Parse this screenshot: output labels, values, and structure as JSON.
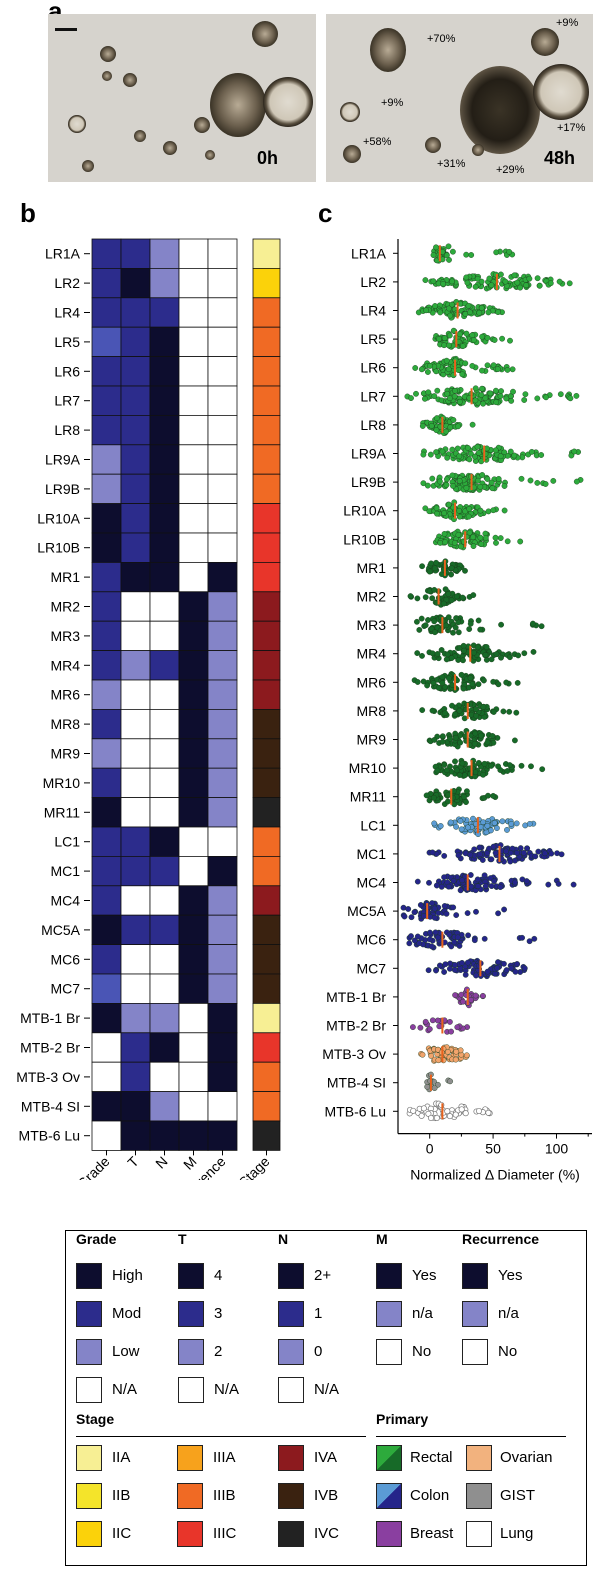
{
  "panel_labels": {
    "a": "a",
    "b": "b",
    "c": "c"
  },
  "micrographs": [
    {
      "time_label": "0h",
      "growth_labels": []
    },
    {
      "time_label": "48h",
      "growth_labels": [
        "+70%",
        "+9%",
        "+9%",
        "+58%",
        "+17%",
        "+31%",
        "+29%"
      ]
    }
  ],
  "heatmap": {
    "samples": [
      "LR1A",
      "LR2",
      "LR4",
      "LR5",
      "LR6",
      "LR7",
      "LR8",
      "LR9A",
      "LR9B",
      "LR10A",
      "LR10B",
      "MR1",
      "MR2",
      "MR3",
      "MR4",
      "MR6",
      "MR8",
      "MR9",
      "MR10",
      "MR11",
      "LC1",
      "MC1",
      "MC4",
      "MC5A",
      "MC6",
      "MC7",
      "MTB-1 Br",
      "MTB-2 Br",
      "MTB-3 Ov",
      "MTB-4 SI",
      "MTB-6 Lu"
    ],
    "columns": [
      "Grade",
      "T",
      "N",
      "M",
      "Recurrence"
    ],
    "stage_label": "Stage",
    "colors": {
      "high": "#0d0d2e",
      "mod": "#2c2c8c",
      "mod2": "#4a55b5",
      "low": "#8484c8",
      "white": "#ffffff"
    },
    "cells": [
      [
        "mod",
        "mod",
        "low",
        "white",
        "white"
      ],
      [
        "mod",
        "high",
        "low",
        "white",
        "white"
      ],
      [
        "mod",
        "mod",
        "mod",
        "white",
        "white"
      ],
      [
        "mod2",
        "mod",
        "high",
        "white",
        "white"
      ],
      [
        "mod",
        "mod",
        "high",
        "white",
        "white"
      ],
      [
        "mod",
        "mod",
        "high",
        "white",
        "white"
      ],
      [
        "mod",
        "mod",
        "high",
        "white",
        "white"
      ],
      [
        "low",
        "mod",
        "high",
        "white",
        "white"
      ],
      [
        "low",
        "mod",
        "high",
        "white",
        "white"
      ],
      [
        "high",
        "mod",
        "high",
        "white",
        "white"
      ],
      [
        "high",
        "mod",
        "high",
        "white",
        "white"
      ],
      [
        "mod",
        "high",
        "high",
        "white",
        "high"
      ],
      [
        "mod",
        "white",
        "white",
        "high",
        "low"
      ],
      [
        "mod",
        "white",
        "white",
        "high",
        "low"
      ],
      [
        "mod",
        "low",
        "mod",
        "high",
        "low"
      ],
      [
        "low",
        "white",
        "white",
        "high",
        "low"
      ],
      [
        "mod",
        "white",
        "white",
        "high",
        "low"
      ],
      [
        "low",
        "white",
        "white",
        "high",
        "low"
      ],
      [
        "mod",
        "white",
        "white",
        "high",
        "low"
      ],
      [
        "high",
        "white",
        "white",
        "high",
        "low"
      ],
      [
        "mod",
        "mod",
        "high",
        "white",
        "white"
      ],
      [
        "mod",
        "mod",
        "mod",
        "white",
        "high"
      ],
      [
        "mod",
        "white",
        "white",
        "high",
        "low"
      ],
      [
        "high",
        "mod",
        "mod",
        "high",
        "low"
      ],
      [
        "mod",
        "white",
        "white",
        "high",
        "low"
      ],
      [
        "mod2",
        "white",
        "white",
        "high",
        "low"
      ],
      [
        "high",
        "low",
        "low",
        "white",
        "high"
      ],
      [
        "white",
        "mod",
        "high",
        "white",
        "high"
      ],
      [
        "white",
        "mod",
        "white",
        "white",
        "high"
      ],
      [
        "high",
        "high",
        "low",
        "white",
        "white"
      ],
      [
        "white",
        "high",
        "high",
        "high",
        "high"
      ]
    ],
    "stages": [
      "IIA",
      "IIC",
      "IIIB",
      "IIIB",
      "IIIB",
      "IIIB",
      "IIIB",
      "IIIB",
      "IIIB",
      "IIIC",
      "IIIC",
      "IIIC",
      "IVA",
      "IVA",
      "IVA",
      "IVA",
      "IVB",
      "IVB",
      "IVB",
      "IVC",
      "IIIB",
      "IIIB",
      "IVA",
      "IVB",
      "IVB",
      "IVB",
      "IIA",
      "IIIC",
      "IIIB",
      "IIIB",
      "IVC"
    ]
  },
  "chart_data": {
    "type": "scatter",
    "xlabel": "Normalized Δ Diameter (%)",
    "xlim": [
      -25,
      128
    ],
    "xticks": [
      0,
      50,
      100
    ],
    "categories": [
      "LR1A",
      "LR2",
      "LR4",
      "LR5",
      "LR6",
      "LR7",
      "LR8",
      "LR9A",
      "LR9B",
      "LR10A",
      "LR10B",
      "MR1",
      "MR2",
      "MR3",
      "MR4",
      "MR6",
      "MR8",
      "MR9",
      "MR10",
      "MR11",
      "LC1",
      "MC1",
      "MC4",
      "MC5A",
      "MC6",
      "MC7",
      "MTB-1 Br",
      "MTB-2 Br",
      "MTB-3 Ov",
      "MTB-4 SI",
      "MTB-6 Lu"
    ],
    "primary": [
      "rectal",
      "rectal",
      "rectal",
      "rectal",
      "rectal",
      "rectal",
      "rectal",
      "rectal",
      "rectal",
      "rectal",
      "rectal",
      "rectal_dark",
      "rectal_dark",
      "rectal_dark",
      "rectal_dark",
      "rectal_dark",
      "rectal_dark",
      "rectal_dark",
      "rectal_dark",
      "rectal_dark",
      "colon_light",
      "colon",
      "colon",
      "colon",
      "colon",
      "colon",
      "breast",
      "breast",
      "ovarian",
      "gist",
      "lung"
    ],
    "medians": [
      8,
      53,
      22,
      21,
      20,
      33,
      10,
      43,
      33,
      20,
      28,
      12,
      7,
      10,
      32,
      20,
      30,
      30,
      33,
      17,
      38,
      55,
      30,
      -2,
      10,
      40,
      30,
      10,
      10,
      1,
      10
    ],
    "ranges": [
      [
        3,
        68
      ],
      [
        -8,
        115
      ],
      [
        -10,
        60
      ],
      [
        -2,
        65
      ],
      [
        -15,
        70
      ],
      [
        -18,
        125
      ],
      [
        -8,
        35
      ],
      [
        -5,
        120
      ],
      [
        -5,
        120
      ],
      [
        -5,
        60
      ],
      [
        -7,
        80
      ],
      [
        -10,
        35
      ],
      [
        -25,
        35
      ],
      [
        -22,
        105
      ],
      [
        -12,
        90
      ],
      [
        -12,
        70
      ],
      [
        -10,
        70
      ],
      [
        -2,
        70
      ],
      [
        -15,
        95
      ],
      [
        -5,
        60
      ],
      [
        -2,
        92
      ],
      [
        -5,
        115
      ],
      [
        -12,
        120
      ],
      [
        -25,
        65
      ],
      [
        -25,
        90
      ],
      [
        -20,
        92
      ],
      [
        20,
        45
      ],
      [
        -15,
        35
      ],
      [
        -22,
        36
      ],
      [
        -2,
        25
      ],
      [
        -20,
        48
      ]
    ],
    "counts": [
      40,
      110,
      80,
      60,
      70,
      110,
      50,
      100,
      100,
      70,
      80,
      45,
      40,
      55,
      80,
      70,
      65,
      65,
      80,
      55,
      70,
      95,
      90,
      50,
      60,
      80,
      25,
      22,
      50,
      15,
      55
    ],
    "colors": {
      "rectal": "#2daa3c",
      "rectal_dark": "#176a28",
      "colon_light": "#5b9bd5",
      "colon": "#25258a",
      "breast": "#8a3fa0",
      "ovarian": "#f2a46c",
      "gist": "#8f8f8f",
      "lung": "#ffffff"
    },
    "median_color": "#e8621c"
  },
  "legend": {
    "groups": [
      {
        "title": "Grade",
        "items": [
          {
            "label": "High",
            "color": "#0d0d2e"
          },
          {
            "label": "Mod",
            "color": "#2c2c8c"
          },
          {
            "label": "Low",
            "color": "#8484c8"
          },
          {
            "label": "N/A",
            "color": "#ffffff"
          }
        ]
      },
      {
        "title": "T",
        "items": [
          {
            "label": "4",
            "color": "#0d0d2e"
          },
          {
            "label": "3",
            "color": "#2c2c8c"
          },
          {
            "label": "2",
            "color": "#8484c8"
          },
          {
            "label": "N/A",
            "color": "#ffffff"
          }
        ]
      },
      {
        "title": "N",
        "items": [
          {
            "label": "2+",
            "color": "#0d0d2e"
          },
          {
            "label": "1",
            "color": "#2c2c8c"
          },
          {
            "label": "0",
            "color": "#8484c8"
          },
          {
            "label": "N/A",
            "color": "#ffffff"
          }
        ]
      },
      {
        "title": "M",
        "items": [
          {
            "label": "Yes",
            "color": "#0d0d2e"
          },
          {
            "label": "n/a",
            "color": "#8484c8"
          },
          {
            "label": "No",
            "color": "#ffffff"
          }
        ]
      },
      {
        "title": "Recurrence",
        "items": [
          {
            "label": "Yes",
            "color": "#0d0d2e"
          },
          {
            "label": "n/a",
            "color": "#8484c8"
          },
          {
            "label": "No",
            "color": "#ffffff"
          }
        ]
      }
    ],
    "stage_title": "Stage",
    "stage_items": [
      {
        "label": "IIA",
        "color": "#f7ef94"
      },
      {
        "label": "IIB",
        "color": "#f4e42a"
      },
      {
        "label": "IIC",
        "color": "#fbd20a"
      },
      {
        "label": "IIIA",
        "color": "#f7a21c"
      },
      {
        "label": "IIIB",
        "color": "#f06a24"
      },
      {
        "label": "IIIC",
        "color": "#e8352a"
      },
      {
        "label": "IVA",
        "color": "#8c1a1e"
      },
      {
        "label": "IVB",
        "color": "#3a2210"
      },
      {
        "label": "IVC",
        "color": "#222222"
      }
    ],
    "primary_title": "Primary",
    "primary_items": [
      {
        "label": "Rectal",
        "color": "#2daa3c",
        "color2": "#176a28"
      },
      {
        "label": "Ovarian",
        "color": "#f2b27e"
      },
      {
        "label": "Colon",
        "color": "#5b9bd5",
        "color2": "#25258a"
      },
      {
        "label": "GIST",
        "color": "#8f8f8f"
      },
      {
        "label": "Breast",
        "color": "#8a3fa0"
      },
      {
        "label": "Lung",
        "color": "#ffffff"
      }
    ]
  }
}
